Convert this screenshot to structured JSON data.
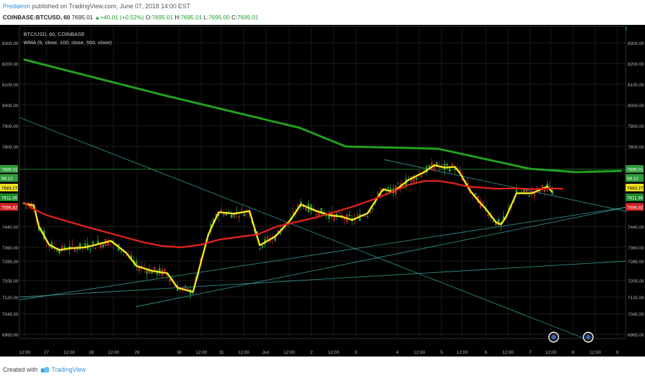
{
  "header": {
    "author": "Predatron",
    "published_text": "published on TradingView.com, June 07, 2018 14:00 EST",
    "symbol": "COINBASE:BTCUSD, 60",
    "last": "7695.01",
    "arrow": "▲",
    "change": "+40.01 (+0.52%)",
    "o_label": "O:",
    "o_value": "7695.01",
    "h_label": "H:",
    "h_value": "7695.01",
    "l_label": "L:",
    "l_value": "7695.00",
    "c_label": "C:",
    "c_value": "7695.01"
  },
  "chart_data": {
    "type": "line",
    "legend_symbol": "BTC/USD, 60, COINBASE",
    "legend_indicator": "WMA (9, close, 100, close, 550, close)",
    "y_ticks": [
      8300,
      8200,
      8100,
      8000,
      7900,
      7800,
      7440,
      7360,
      7285,
      7205,
      7125,
      7045,
      6965
    ],
    "y_tick_labels": [
      "8300.00",
      "8200.00",
      "8100.00",
      "8000.00",
      "7900.00",
      "7800.00",
      "7440.00",
      "7360.00",
      "7285.00",
      "7205.00",
      "7125.00",
      "7045.00",
      "6965.00"
    ],
    "x_tick_labels": [
      "12:00",
      "27",
      "12:00",
      "28",
      "12:00",
      "29",
      "30",
      "12:00",
      "31",
      "12:00",
      "Jun",
      "12:00",
      "2",
      "12:00",
      "3",
      "4",
      "12:00",
      "5",
      "12:00",
      "6",
      "12:00",
      "7",
      "12:00",
      "8",
      "12:00",
      "9"
    ],
    "price_badges": [
      {
        "label": "7695.01",
        "color": "#2e9c3a"
      },
      {
        "label": "59.12",
        "color": "#2e9c3a"
      },
      {
        "label": "7683.27",
        "color": "#f0e020"
      },
      {
        "label": "7611.36",
        "color": "#1d8c2a"
      },
      {
        "label": "7596.82",
        "color": "#d42020"
      }
    ],
    "series": [
      {
        "color": "#f7e91c",
        "x": [
          0,
          2,
          3,
          5,
          7,
          9,
          12,
          14,
          17,
          20,
          22,
          25,
          28,
          30,
          33,
          36,
          38,
          41,
          44,
          46,
          49,
          52,
          54,
          57,
          60,
          62,
          64,
          67,
          70,
          72,
          75,
          78,
          80,
          82,
          84,
          85,
          87,
          89,
          90,
          91,
          92,
          93,
          94,
          96,
          99,
          102,
          103
        ],
        "y": [
          7545,
          7535,
          7440,
          7370,
          7345,
          7355,
          7360,
          7370,
          7385,
          7330,
          7265,
          7245,
          7235,
          7170,
          7150,
          7410,
          7505,
          7498,
          7510,
          7368,
          7402,
          7470,
          7540,
          7510,
          7490,
          7485,
          7470,
          7500,
          7608,
          7596,
          7650,
          7685,
          7716,
          7705,
          7708,
          7680,
          7600,
          7545,
          7520,
          7490,
          7460,
          7450,
          7485,
          7590,
          7590,
          7620,
          7595
        ]
      },
      {
        "color": "#e0231a",
        "x": [
          0,
          2,
          5,
          9,
          13,
          17,
          21,
          25,
          29,
          33,
          37,
          41,
          45,
          49,
          53,
          57,
          61,
          65,
          69,
          73,
          77,
          81,
          84,
          87,
          90,
          93,
          96,
          99,
          103,
          107,
          110,
          113
        ],
        "y": [
          7550,
          7520,
          7490,
          7465,
          7440,
          7420,
          7400,
          7380,
          7365,
          7360,
          7370,
          7390,
          7400,
          7410,
          7440,
          7460,
          7480,
          7505,
          7530,
          7560,
          7595,
          7630,
          7645,
          7645,
          7635,
          7620,
          7615,
          7610,
          7612,
          7608,
          7612,
          7610
        ]
      },
      {
        "color": "#22a31e",
        "x": [
          0,
          30,
          60,
          70,
          90,
          110,
          120,
          130
        ],
        "y": [
          8220,
          8050,
          7890,
          7800,
          7790,
          7700,
          7685,
          7690
        ]
      }
    ]
  }
}
